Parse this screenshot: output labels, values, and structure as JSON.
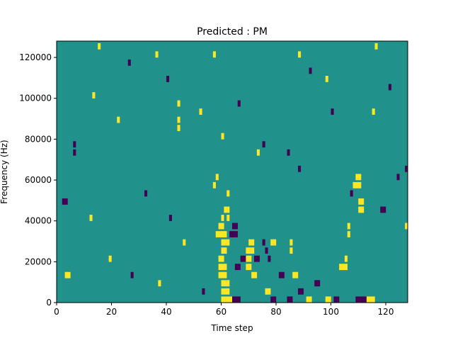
{
  "chart_data": {
    "type": "heatmap",
    "title": "Predicted : PM",
    "xlabel": "Time step",
    "ylabel": "Frequency (Hz)",
    "xlim": [
      0,
      128
    ],
    "ylim": [
      0,
      128000
    ],
    "xticks": [
      0,
      20,
      40,
      60,
      80,
      100,
      120
    ],
    "yticks": [
      0,
      20000,
      40000,
      60000,
      80000,
      100000,
      120000
    ],
    "grid": false,
    "legend": "none",
    "n_time_steps": 128,
    "n_freq_bins": 128,
    "colors": {
      "background": "#21918c",
      "low": "#440154",
      "high": "#fde725"
    },
    "cells": [
      {
        "t": 60,
        "f": 0,
        "v": 1
      },
      {
        "t": 61,
        "f": 0,
        "v": 1
      },
      {
        "t": 62,
        "f": 0,
        "v": 1
      },
      {
        "t": 63,
        "f": 0,
        "v": 1
      },
      {
        "t": 60,
        "f": 4000,
        "v": 1
      },
      {
        "t": 61,
        "f": 4000,
        "v": 1
      },
      {
        "t": 62,
        "f": 4000,
        "v": 1
      },
      {
        "t": 60,
        "f": 8000,
        "v": 1
      },
      {
        "t": 61,
        "f": 8000,
        "v": 1
      },
      {
        "t": 62,
        "f": 8000,
        "v": 1
      },
      {
        "t": 59,
        "f": 12000,
        "v": 1
      },
      {
        "t": 60,
        "f": 12000,
        "v": 1
      },
      {
        "t": 61,
        "f": 12000,
        "v": 1
      },
      {
        "t": 59,
        "f": 16000,
        "v": 1
      },
      {
        "t": 60,
        "f": 16000,
        "v": 1
      },
      {
        "t": 61,
        "f": 16000,
        "v": 1
      },
      {
        "t": 59,
        "f": 20000,
        "v": 1
      },
      {
        "t": 60,
        "f": 20000,
        "v": 1
      },
      {
        "t": 60,
        "f": 24000,
        "v": 1
      },
      {
        "t": 61,
        "f": 24000,
        "v": 1
      },
      {
        "t": 60,
        "f": 28000,
        "v": 1
      },
      {
        "t": 61,
        "f": 28000,
        "v": 1
      },
      {
        "t": 62,
        "f": 28000,
        "v": 1
      },
      {
        "t": 58,
        "f": 32000,
        "v": 1
      },
      {
        "t": 59,
        "f": 32000,
        "v": 1
      },
      {
        "t": 60,
        "f": 32000,
        "v": 1
      },
      {
        "t": 61,
        "f": 32000,
        "v": 1
      },
      {
        "t": 59,
        "f": 36000,
        "v": 1
      },
      {
        "t": 60,
        "f": 36000,
        "v": 1
      },
      {
        "t": 60,
        "f": 40000,
        "v": 1
      },
      {
        "t": 62,
        "f": 40000,
        "v": 1
      },
      {
        "t": 61,
        "f": 44000,
        "v": 1
      },
      {
        "t": 62,
        "f": 44000,
        "v": 1
      },
      {
        "t": 62,
        "f": 52000,
        "v": 1
      },
      {
        "t": 57,
        "f": 56000,
        "v": 1
      },
      {
        "t": 58,
        "f": 60000,
        "v": 1
      },
      {
        "t": 64,
        "f": 0,
        "v": 0
      },
      {
        "t": 65,
        "f": 0,
        "v": 0
      },
      {
        "t": 66,
        "f": 0,
        "v": 0
      },
      {
        "t": 63,
        "f": 32000,
        "v": 0
      },
      {
        "t": 64,
        "f": 32000,
        "v": 0
      },
      {
        "t": 65,
        "f": 32000,
        "v": 0
      },
      {
        "t": 64,
        "f": 36000,
        "v": 0
      },
      {
        "t": 65,
        "f": 36000,
        "v": 0
      },
      {
        "t": 65,
        "f": 16000,
        "v": 0
      },
      {
        "t": 66,
        "f": 16000,
        "v": 0
      },
      {
        "t": 67,
        "f": 20000,
        "v": 0
      },
      {
        "t": 68,
        "f": 20000,
        "v": 0
      },
      {
        "t": 69,
        "f": 16000,
        "v": 1
      },
      {
        "t": 70,
        "f": 16000,
        "v": 1
      },
      {
        "t": 69,
        "f": 20000,
        "v": 1
      },
      {
        "t": 70,
        "f": 20000,
        "v": 1
      },
      {
        "t": 69,
        "f": 24000,
        "v": 1
      },
      {
        "t": 70,
        "f": 24000,
        "v": 1
      },
      {
        "t": 71,
        "f": 24000,
        "v": 1
      },
      {
        "t": 70,
        "f": 28000,
        "v": 1
      },
      {
        "t": 71,
        "f": 28000,
        "v": 1
      },
      {
        "t": 72,
        "f": 20000,
        "v": 0
      },
      {
        "t": 73,
        "f": 20000,
        "v": 0
      },
      {
        "t": 71,
        "f": 12000,
        "v": 1
      },
      {
        "t": 72,
        "f": 12000,
        "v": 1
      },
      {
        "t": 76,
        "f": 4000,
        "v": 1
      },
      {
        "t": 77,
        "f": 4000,
        "v": 1
      },
      {
        "t": 78,
        "f": 0,
        "v": 0
      },
      {
        "t": 79,
        "f": 0,
        "v": 0
      },
      {
        "t": 75,
        "f": 28000,
        "v": 0
      },
      {
        "t": 76,
        "f": 24000,
        "v": 0
      },
      {
        "t": 77,
        "f": 20000,
        "v": 0
      },
      {
        "t": 78,
        "f": 28000,
        "v": 1
      },
      {
        "t": 79,
        "f": 28000,
        "v": 1
      },
      {
        "t": 81,
        "f": 12000,
        "v": 0
      },
      {
        "t": 82,
        "f": 12000,
        "v": 0
      },
      {
        "t": 84,
        "f": 0,
        "v": 0
      },
      {
        "t": 85,
        "f": 0,
        "v": 0
      },
      {
        "t": 85,
        "f": 28000,
        "v": 1
      },
      {
        "t": 85,
        "f": 24000,
        "v": 1
      },
      {
        "t": 86,
        "f": 12000,
        "v": 1
      },
      {
        "t": 87,
        "f": 12000,
        "v": 1
      },
      {
        "t": 88,
        "f": 4000,
        "v": 0
      },
      {
        "t": 89,
        "f": 4000,
        "v": 0
      },
      {
        "t": 91,
        "f": 0,
        "v": 1
      },
      {
        "t": 92,
        "f": 0,
        "v": 1
      },
      {
        "t": 94,
        "f": 8000,
        "v": 0
      },
      {
        "t": 95,
        "f": 8000,
        "v": 0
      },
      {
        "t": 98,
        "f": 0,
        "v": 1
      },
      {
        "t": 99,
        "f": 0,
        "v": 1
      },
      {
        "t": 101,
        "f": 0,
        "v": 0
      },
      {
        "t": 102,
        "f": 0,
        "v": 0
      },
      {
        "t": 103,
        "f": 16000,
        "v": 1
      },
      {
        "t": 104,
        "f": 16000,
        "v": 1
      },
      {
        "t": 105,
        "f": 20000,
        "v": 1
      },
      {
        "t": 105,
        "f": 16000,
        "v": 1
      },
      {
        "t": 106,
        "f": 36000,
        "v": 1
      },
      {
        "t": 106,
        "f": 32000,
        "v": 1
      },
      {
        "t": 109,
        "f": 0,
        "v": 0
      },
      {
        "t": 110,
        "f": 0,
        "v": 0
      },
      {
        "t": 111,
        "f": 0,
        "v": 0
      },
      {
        "t": 112,
        "f": 0,
        "v": 0
      },
      {
        "t": 113,
        "f": 0,
        "v": 1
      },
      {
        "t": 114,
        "f": 0,
        "v": 1
      },
      {
        "t": 115,
        "f": 0,
        "v": 1
      },
      {
        "t": 110,
        "f": 44000,
        "v": 1
      },
      {
        "t": 111,
        "f": 44000,
        "v": 1
      },
      {
        "t": 110,
        "f": 48000,
        "v": 1
      },
      {
        "t": 111,
        "f": 48000,
        "v": 1
      },
      {
        "t": 108,
        "f": 56000,
        "v": 1
      },
      {
        "t": 109,
        "f": 56000,
        "v": 1
      },
      {
        "t": 110,
        "f": 56000,
        "v": 1
      },
      {
        "t": 109,
        "f": 60000,
        "v": 1
      },
      {
        "t": 110,
        "f": 60000,
        "v": 1
      },
      {
        "t": 118,
        "f": 44000,
        "v": 0
      },
      {
        "t": 119,
        "f": 44000,
        "v": 0
      },
      {
        "t": 2,
        "f": 48000,
        "v": 0
      },
      {
        "t": 3,
        "f": 48000,
        "v": 0
      },
      {
        "t": 3,
        "f": 12000,
        "v": 1
      },
      {
        "t": 4,
        "f": 12000,
        "v": 1
      },
      {
        "t": 26,
        "f": 116000,
        "v": 0
      },
      {
        "t": 57,
        "f": 120000,
        "v": 1
      },
      {
        "t": 6,
        "f": 76000,
        "v": 0
      },
      {
        "t": 6,
        "f": 72000,
        "v": 0
      },
      {
        "t": 22,
        "f": 88000,
        "v": 1
      },
      {
        "t": 44,
        "f": 96000,
        "v": 1
      },
      {
        "t": 44,
        "f": 88000,
        "v": 1
      },
      {
        "t": 44,
        "f": 84000,
        "v": 1
      },
      {
        "t": 66,
        "f": 96000,
        "v": 0
      },
      {
        "t": 73,
        "f": 72000,
        "v": 1
      },
      {
        "t": 84,
        "f": 72000,
        "v": 0
      },
      {
        "t": 88,
        "f": 64000,
        "v": 0
      },
      {
        "t": 107,
        "f": 52000,
        "v": 0
      },
      {
        "t": 127,
        "f": 64000,
        "v": 0
      },
      {
        "t": 127,
        "f": 36000,
        "v": 1
      },
      {
        "t": 121,
        "f": 104000,
        "v": 0
      },
      {
        "t": 116,
        "f": 124000,
        "v": 1
      },
      {
        "t": 15,
        "f": 124000,
        "v": 1
      },
      {
        "t": 36,
        "f": 120000,
        "v": 1
      },
      {
        "t": 88,
        "f": 120000,
        "v": 1
      },
      {
        "t": 92,
        "f": 112000,
        "v": 0
      },
      {
        "t": 98,
        "f": 108000,
        "v": 1
      },
      {
        "t": 13,
        "f": 100000,
        "v": 1
      },
      {
        "t": 40,
        "f": 108000,
        "v": 0
      },
      {
        "t": 52,
        "f": 92000,
        "v": 1
      },
      {
        "t": 60,
        "f": 80000,
        "v": 1
      },
      {
        "t": 75,
        "f": 76000,
        "v": 0
      },
      {
        "t": 100,
        "f": 92000,
        "v": 0
      },
      {
        "t": 115,
        "f": 92000,
        "v": 1
      },
      {
        "t": 124,
        "f": 60000,
        "v": 0
      },
      {
        "t": 32,
        "f": 52000,
        "v": 0
      },
      {
        "t": 41,
        "f": 40000,
        "v": 0
      },
      {
        "t": 46,
        "f": 28000,
        "v": 1
      },
      {
        "t": 12,
        "f": 40000,
        "v": 1
      },
      {
        "t": 19,
        "f": 20000,
        "v": 1
      },
      {
        "t": 27,
        "f": 12000,
        "v": 0
      },
      {
        "t": 37,
        "f": 8000,
        "v": 1
      },
      {
        "t": 53,
        "f": 4000,
        "v": 0
      }
    ]
  }
}
